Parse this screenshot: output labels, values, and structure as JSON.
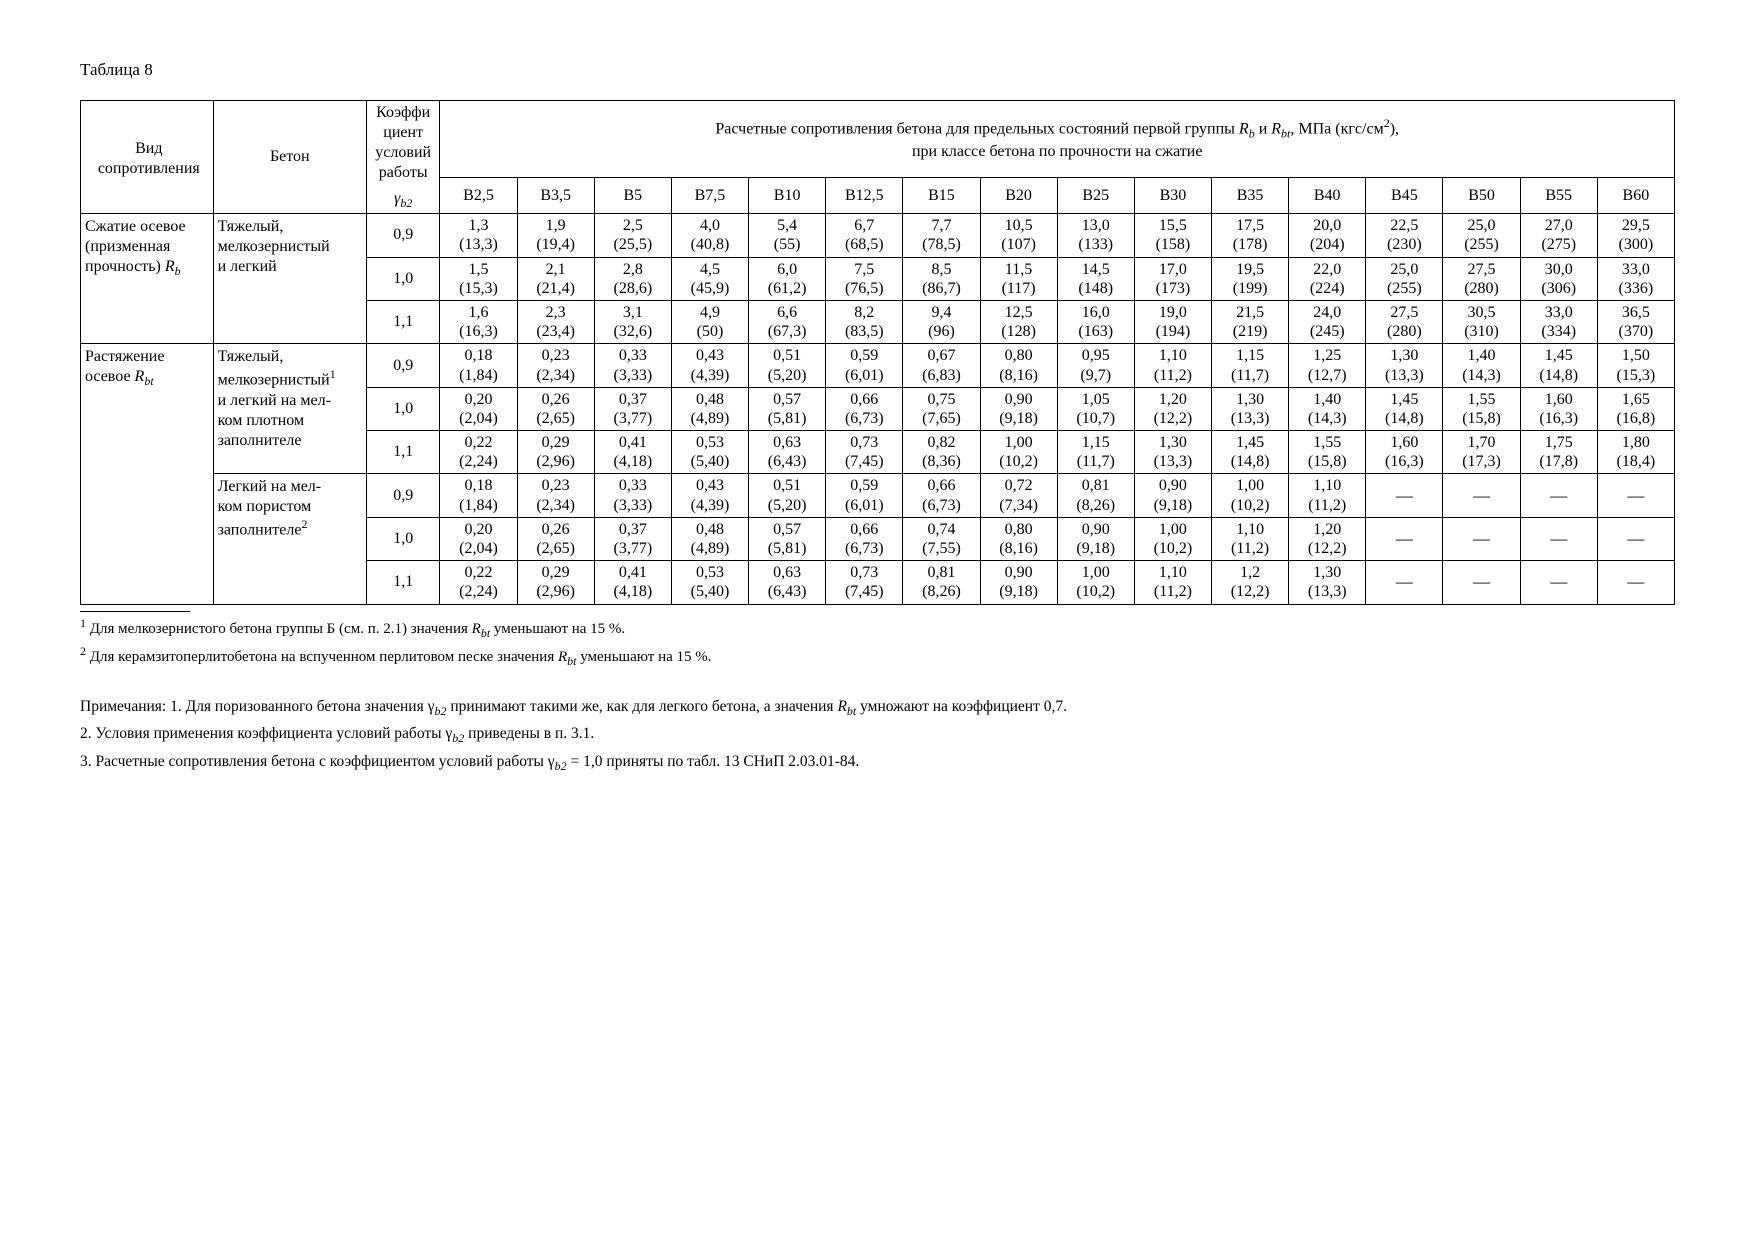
{
  "caption": "Таблица 8",
  "header": {
    "col1": "Вид сопротивления",
    "col2": "Бетон",
    "col3_l1": "Коэффи",
    "col3_l2": "циент",
    "col3_l3": "условий работы",
    "col3_sym_pre": "γ",
    "col3_sym_sub": "b2",
    "span_title_pre": "Расчетные сопротивления бетона для предельных состояний первой группы ",
    "span_title_mid": " и ",
    "span_title_post": ", МПа (кгс/см",
    "span_title_end": "),",
    "span_title_line2": "при классе бетона по прочности на сжатие"
  },
  "classes": [
    "B2,5",
    "B3,5",
    "B5",
    "B7,5",
    "B10",
    "B12,5",
    "B15",
    "B20",
    "B25",
    "B30",
    "B35",
    "B40",
    "B45",
    "B50",
    "B55",
    "B60"
  ],
  "group1": {
    "label_l1": "Сжатие осевое",
    "label_l2": "(призменная",
    "label_l3_pre": "прочность) ",
    "concrete_l1": "Тяжелый,",
    "concrete_l2": "мелкозернистый",
    "concrete_l3": "и легкий",
    "rows": [
      {
        "g": "0,9",
        "v": [
          [
            "1,3",
            "(13,3)"
          ],
          [
            "1,9",
            "(19,4)"
          ],
          [
            "2,5",
            "(25,5)"
          ],
          [
            "4,0",
            "(40,8)"
          ],
          [
            "5,4",
            "(55)"
          ],
          [
            "6,7",
            "(68,5)"
          ],
          [
            "7,7",
            "(78,5)"
          ],
          [
            "10,5",
            "(107)"
          ],
          [
            "13,0",
            "(133)"
          ],
          [
            "15,5",
            "(158)"
          ],
          [
            "17,5",
            "(178)"
          ],
          [
            "20,0",
            "(204)"
          ],
          [
            "22,5",
            "(230)"
          ],
          [
            "25,0",
            "(255)"
          ],
          [
            "27,0",
            "(275)"
          ],
          [
            "29,5",
            "(300)"
          ]
        ]
      },
      {
        "g": "1,0",
        "v": [
          [
            "1,5",
            "(15,3)"
          ],
          [
            "2,1",
            "(21,4)"
          ],
          [
            "2,8",
            "(28,6)"
          ],
          [
            "4,5",
            "(45,9)"
          ],
          [
            "6,0",
            "(61,2)"
          ],
          [
            "7,5",
            "(76,5)"
          ],
          [
            "8,5",
            "(86,7)"
          ],
          [
            "11,5",
            "(117)"
          ],
          [
            "14,5",
            "(148)"
          ],
          [
            "17,0",
            "(173)"
          ],
          [
            "19,5",
            "(199)"
          ],
          [
            "22,0",
            "(224)"
          ],
          [
            "25,0",
            "(255)"
          ],
          [
            "27,5",
            "(280)"
          ],
          [
            "30,0",
            "(306)"
          ],
          [
            "33,0",
            "(336)"
          ]
        ]
      },
      {
        "g": "1,1",
        "v": [
          [
            "1,6",
            "(16,3)"
          ],
          [
            "2,3",
            "(23,4)"
          ],
          [
            "3,1",
            "(32,6)"
          ],
          [
            "4,9",
            "(50)"
          ],
          [
            "6,6",
            "(67,3)"
          ],
          [
            "8,2",
            "(83,5)"
          ],
          [
            "9,4",
            "(96)"
          ],
          [
            "12,5",
            "(128)"
          ],
          [
            "16,0",
            "(163)"
          ],
          [
            "19,0",
            "(194)"
          ],
          [
            "21,5",
            "(219)"
          ],
          [
            "24,0",
            "(245)"
          ],
          [
            "27,5",
            "(280)"
          ],
          [
            "30,5",
            "(310)"
          ],
          [
            "33,0",
            "(334)"
          ],
          [
            "36,5",
            "(370)"
          ]
        ]
      }
    ]
  },
  "group2a": {
    "label_l1": "Растяжение",
    "label_l2_pre": "осевое ",
    "concrete_l1": "Тяжелый,",
    "concrete_l2": "мелкозернистый",
    "concrete_l3": "и легкий на мел-",
    "concrete_l4": "ком плотном",
    "concrete_l5": "заполнителе",
    "rows": [
      {
        "g": "0,9",
        "v": [
          [
            "0,18",
            "(1,84)"
          ],
          [
            "0,23",
            "(2,34)"
          ],
          [
            "0,33",
            "(3,33)"
          ],
          [
            "0,43",
            "(4,39)"
          ],
          [
            "0,51",
            "(5,20)"
          ],
          [
            "0,59",
            "(6,01)"
          ],
          [
            "0,67",
            "(6,83)"
          ],
          [
            "0,80",
            "(8,16)"
          ],
          [
            "0,95",
            "(9,7)"
          ],
          [
            "1,10",
            "(11,2)"
          ],
          [
            "1,15",
            "(11,7)"
          ],
          [
            "1,25",
            "(12,7)"
          ],
          [
            "1,30",
            "(13,3)"
          ],
          [
            "1,40",
            "(14,3)"
          ],
          [
            "1,45",
            "(14,8)"
          ],
          [
            "1,50",
            "(15,3)"
          ]
        ]
      },
      {
        "g": "1,0",
        "v": [
          [
            "0,20",
            "(2,04)"
          ],
          [
            "0,26",
            "(2,65)"
          ],
          [
            "0,37",
            "(3,77)"
          ],
          [
            "0,48",
            "(4,89)"
          ],
          [
            "0,57",
            "(5,81)"
          ],
          [
            "0,66",
            "(6,73)"
          ],
          [
            "0,75",
            "(7,65)"
          ],
          [
            "0,90",
            "(9,18)"
          ],
          [
            "1,05",
            "(10,7)"
          ],
          [
            "1,20",
            "(12,2)"
          ],
          [
            "1,30",
            "(13,3)"
          ],
          [
            "1,40",
            "(14,3)"
          ],
          [
            "1,45",
            "(14,8)"
          ],
          [
            "1,55",
            "(15,8)"
          ],
          [
            "1,60",
            "(16,3)"
          ],
          [
            "1,65",
            "(16,8)"
          ]
        ]
      },
      {
        "g": "1,1",
        "v": [
          [
            "0,22",
            "(2,24)"
          ],
          [
            "0,29",
            "(2,96)"
          ],
          [
            "0,41",
            "(4,18)"
          ],
          [
            "0,53",
            "(5,40)"
          ],
          [
            "0,63",
            "(6,43)"
          ],
          [
            "0,73",
            "(7,45)"
          ],
          [
            "0,82",
            "(8,36)"
          ],
          [
            "1,00",
            "(10,2)"
          ],
          [
            "1,15",
            "(11,7)"
          ],
          [
            "1,30",
            "(13,3)"
          ],
          [
            "1,45",
            "(14,8)"
          ],
          [
            "1,55",
            "(15,8)"
          ],
          [
            "1,60",
            "(16,3)"
          ],
          [
            "1,70",
            "(17,3)"
          ],
          [
            "1,75",
            "(17,8)"
          ],
          [
            "1,80",
            "(18,4)"
          ]
        ]
      }
    ]
  },
  "group2b": {
    "concrete_l1": "Легкий на мел-",
    "concrete_l2": "ком пористом",
    "concrete_l3": "заполнителе",
    "rows": [
      {
        "g": "0,9",
        "v": [
          [
            "0,18",
            "(1,84)"
          ],
          [
            "0,23",
            "(2,34)"
          ],
          [
            "0,33",
            "(3,33)"
          ],
          [
            "0,43",
            "(4,39)"
          ],
          [
            "0,51",
            "(5,20)"
          ],
          [
            "0,59",
            "(6,01)"
          ],
          [
            "0,66",
            "(6,73)"
          ],
          [
            "0,72",
            "(7,34)"
          ],
          [
            "0,81",
            "(8,26)"
          ],
          [
            "0,90",
            "(9,18)"
          ],
          [
            "1,00",
            "(10,2)"
          ],
          [
            "1,10",
            "(11,2)"
          ],
          [
            "—",
            ""
          ],
          [
            "—",
            ""
          ],
          [
            "—",
            ""
          ],
          [
            "—",
            ""
          ]
        ]
      },
      {
        "g": "1,0",
        "v": [
          [
            "0,20",
            "(2,04)"
          ],
          [
            "0,26",
            "(2,65)"
          ],
          [
            "0,37",
            "(3,77)"
          ],
          [
            "0,48",
            "(4,89)"
          ],
          [
            "0,57",
            "(5,81)"
          ],
          [
            "0,66",
            "(6,73)"
          ],
          [
            "0,74",
            "(7,55)"
          ],
          [
            "0,80",
            "(8,16)"
          ],
          [
            "0,90",
            "(9,18)"
          ],
          [
            "1,00",
            "(10,2)"
          ],
          [
            "1,10",
            "(11,2)"
          ],
          [
            "1,20",
            "(12,2)"
          ],
          [
            "—",
            ""
          ],
          [
            "—",
            ""
          ],
          [
            "—",
            ""
          ],
          [
            "—",
            ""
          ]
        ]
      },
      {
        "g": "1,1",
        "v": [
          [
            "0,22",
            "(2,24)"
          ],
          [
            "0,29",
            "(2,96)"
          ],
          [
            "0,41",
            "(4,18)"
          ],
          [
            "0,53",
            "(5,40)"
          ],
          [
            "0,63",
            "(6,43)"
          ],
          [
            "0,73",
            "(7,45)"
          ],
          [
            "0,81",
            "(8,26)"
          ],
          [
            "0,90",
            "(9,18)"
          ],
          [
            "1,00",
            "(10,2)"
          ],
          [
            "1,10",
            "(11,2)"
          ],
          [
            "1,2",
            "(12,2)"
          ],
          [
            "1,30",
            "(13,3)"
          ],
          [
            "—",
            ""
          ],
          [
            "—",
            ""
          ],
          [
            "—",
            ""
          ],
          [
            "—",
            ""
          ]
        ]
      }
    ]
  },
  "footnotes": {
    "f1_pre": " Для мелкозернистого бетона группы Б (см. п. 2.1) значения ",
    "f1_post": " уменьшают на 15 %.",
    "f2_pre": " Для керамзитоперлитобетона на вспученном перлитовом песке значения ",
    "f2_post": " уменьшают на 15 %."
  },
  "notes": {
    "n1_pre": "Примечания: 1. Для поризованного бетона значения γ",
    "n1_mid": " принимают такими же, как для легкого бетона, а значения ",
    "n1_post": " умножают на коэффициент 0,7.",
    "n2_pre": "2. Условия применения коэффициента условий работы γ",
    "n2_post": " приведены в п. 3.1.",
    "n3_pre": "3. Расчетные сопротивления бетона с коэффициентом условий работы γ",
    "n3_post": " = 1,0 приняты по табл. 13 СНиП 2.03.01-84."
  }
}
